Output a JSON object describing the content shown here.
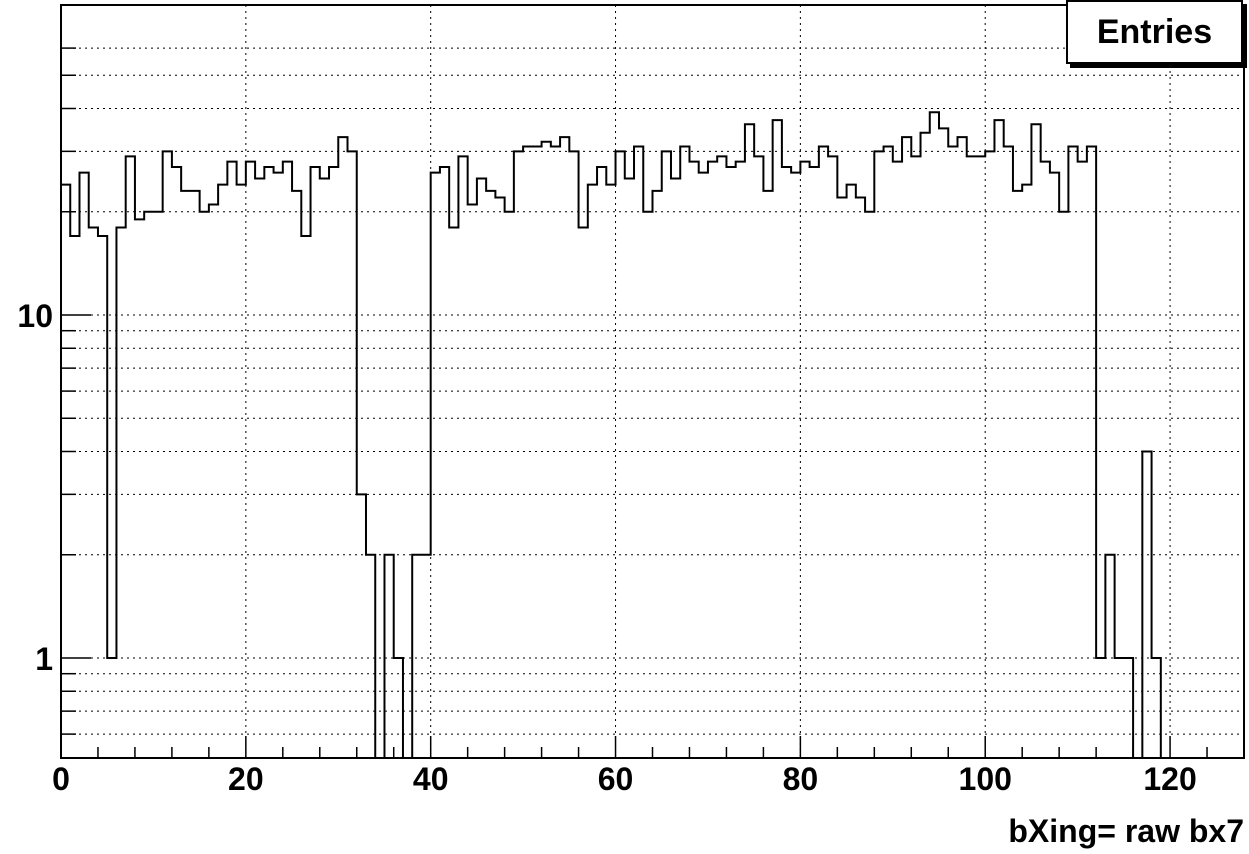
{
  "chart_data": {
    "type": "histogram",
    "title": "",
    "xlabel": "bXing= raw bx7",
    "ylabel": "",
    "stats_label": "Entries",
    "xlim": [
      0,
      128
    ],
    "ylim": [
      0.6,
      60
    ],
    "y_scale": "log",
    "grid": true,
    "line_color": "#000000",
    "x_ticks": [
      0,
      20,
      40,
      60,
      80,
      100,
      120
    ],
    "y_ticks": [
      1,
      10
    ],
    "bin_width": 1,
    "bin_start": 0,
    "values": [
      24,
      17,
      26,
      18,
      17,
      1,
      18,
      29,
      19,
      20,
      20,
      30,
      27,
      23,
      23,
      20,
      21,
      24,
      28,
      24,
      28,
      25,
      27,
      26,
      28,
      23,
      17,
      27,
      25,
      27,
      33,
      30,
      3,
      2,
      0,
      2,
      1,
      0,
      2,
      2,
      26,
      27,
      18,
      29,
      21,
      25,
      23,
      22,
      20,
      30,
      31,
      31,
      32,
      31,
      33,
      30,
      18,
      24,
      27,
      24,
      30,
      25,
      31,
      20,
      23,
      30,
      25,
      31,
      28,
      26,
      28,
      29,
      27,
      28,
      36,
      29,
      23,
      37,
      27,
      26,
      28,
      27,
      31,
      29,
      22,
      24,
      22,
      20,
      30,
      31,
      28,
      33,
      29,
      34,
      39,
      35,
      31,
      33,
      29,
      29,
      30,
      37,
      31,
      23,
      24,
      36,
      28,
      26,
      20,
      31,
      28,
      31,
      1,
      2,
      1,
      1,
      0,
      4,
      1,
      0,
      0,
      0,
      0,
      0,
      0,
      0,
      0,
      0
    ]
  }
}
